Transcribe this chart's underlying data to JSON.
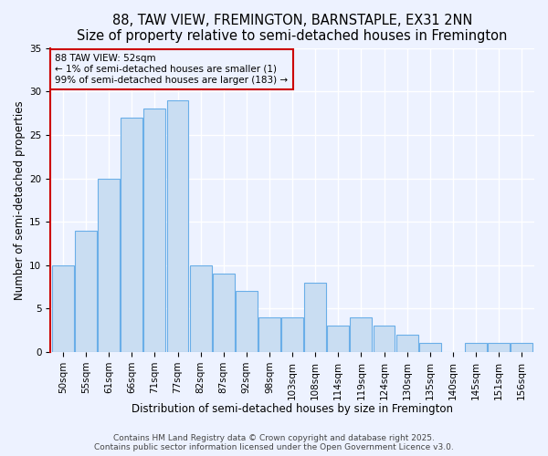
{
  "title": "88, TAW VIEW, FREMINGTON, BARNSTAPLE, EX31 2NN",
  "subtitle": "Size of property relative to semi-detached houses in Fremington",
  "xlabel": "Distribution of semi-detached houses by size in Fremington",
  "ylabel": "Number of semi-detached properties",
  "bar_labels": [
    "50sqm",
    "55sqm",
    "61sqm",
    "66sqm",
    "71sqm",
    "77sqm",
    "82sqm",
    "87sqm",
    "92sqm",
    "98sqm",
    "103sqm",
    "108sqm",
    "114sqm",
    "119sqm",
    "124sqm",
    "130sqm",
    "135sqm",
    "140sqm",
    "145sqm",
    "151sqm",
    "156sqm"
  ],
  "bar_values": [
    10,
    14,
    20,
    27,
    28,
    29,
    10,
    9,
    7,
    4,
    4,
    8,
    3,
    4,
    3,
    2,
    1,
    0,
    1,
    1,
    1
  ],
  "bar_color": "#c9ddf2",
  "bar_edge_color": "#6aaee8",
  "red_spine_color": "#cc0000",
  "annotation_text": "88 TAW VIEW: 52sqm\n← 1% of semi-detached houses are smaller (1)\n99% of semi-detached houses are larger (183) →",
  "annotation_box_edge_color": "#cc0000",
  "ylim": [
    0,
    35
  ],
  "yticks": [
    0,
    5,
    10,
    15,
    20,
    25,
    30,
    35
  ],
  "background_color": "#edf2ff",
  "grid_color": "#ffffff",
  "footer_line1": "Contains HM Land Registry data © Crown copyright and database right 2025.",
  "footer_line2": "Contains public sector information licensed under the Open Government Licence v3.0.",
  "title_fontsize": 10.5,
  "xlabel_fontsize": 8.5,
  "ylabel_fontsize": 8.5,
  "tick_fontsize": 7.5,
  "footer_fontsize": 6.5,
  "annotation_fontsize": 7.5
}
